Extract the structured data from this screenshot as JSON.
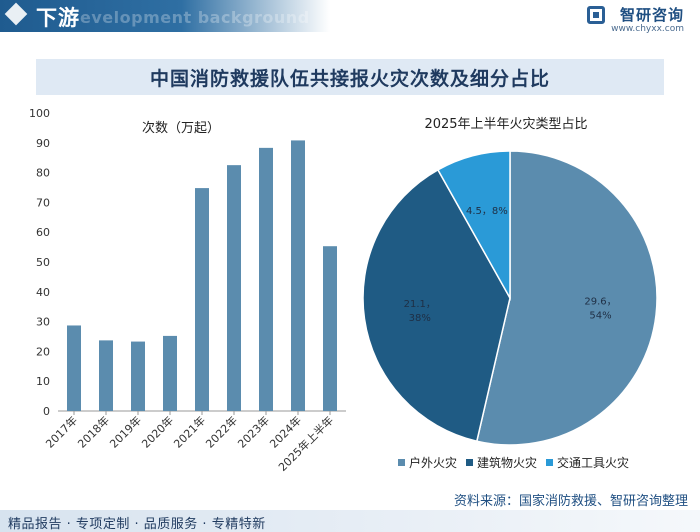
{
  "header": {
    "section_title": "下游",
    "section_subtitle": "evelopment background",
    "logo_name": "智研咨询",
    "logo_url": "www.chyxx.com"
  },
  "main_title": "中国消防救援队伍共接报火灾次数及细分占比",
  "footer": {
    "source": "资料来源：国家消防救援、智研咨询整理",
    "slogan": "精品报告 · 专项定制 · 品质服务 · 专精特新"
  },
  "colors": {
    "bar": "#5b8cae",
    "pie_outdoor": "#5b8cae",
    "pie_building": "#1f5b84",
    "pie_traffic": "#2a9ad7",
    "axis": "#999999"
  },
  "chart_data": [
    {
      "type": "bar",
      "title": "次数（万起）",
      "categories": [
        "2017年",
        "2018年",
        "2019年",
        "2020年",
        "2021年",
        "2022年",
        "2023年",
        "2024年",
        "2025年上半年"
      ],
      "values": [
        28.7,
        23.7,
        23.3,
        25.2,
        74.8,
        82.5,
        88.3,
        90.8,
        55.3
      ],
      "ylim": [
        0,
        100
      ],
      "yticks": [
        0,
        10,
        20,
        30,
        40,
        50,
        60,
        70,
        80,
        90,
        100
      ],
      "grid": false
    },
    {
      "type": "pie",
      "title": "2025年上半年火灾类型占比",
      "slices": [
        {
          "name": "户外火灾",
          "value": 29.6,
          "percent": 54,
          "label": "29.6，54%"
        },
        {
          "name": "建筑物火灾",
          "value": 21.1,
          "percent": 38,
          "label": "21.1，38%"
        },
        {
          "name": "交通工具火灾",
          "value": 4.5,
          "percent": 8,
          "label": "4.5，8%"
        }
      ],
      "legend_position": "bottom"
    }
  ]
}
